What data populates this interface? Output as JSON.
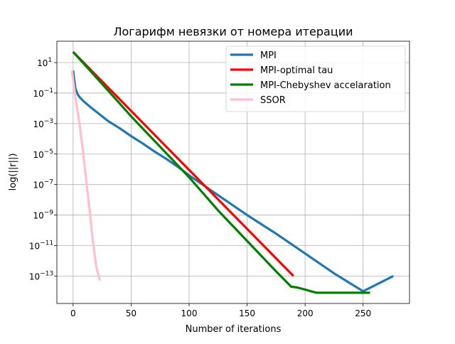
{
  "chart_data": {
    "type": "line",
    "title": "Логарифм невязки от номера итерации",
    "xlabel": "Number of iterations",
    "ylabel": "log(||r||)",
    "y_scale": "log",
    "xlim": [
      -14,
      290
    ],
    "ylim_exponent": [
      -14.8,
      2.4
    ],
    "x_ticks": [
      0,
      50,
      100,
      150,
      200,
      250
    ],
    "y_tick_exponents": [
      1,
      -1,
      -3,
      -5,
      -7,
      -9,
      -11,
      -13
    ],
    "y_tick_base": "10",
    "grid": true,
    "legend_position": "top-right",
    "series": [
      {
        "name": "MPI",
        "color": "#1f77b4",
        "x": [
          0,
          2,
          4,
          6,
          8,
          10,
          15,
          20,
          25,
          30,
          40,
          50,
          60,
          70,
          80,
          90,
          100,
          125,
          150,
          175,
          200,
          225,
          250,
          276
        ],
        "y": [
          3.0,
          0.2,
          0.08,
          0.05,
          0.035,
          0.025,
          0.012,
          0.006,
          0.003,
          0.0015,
          0.0005,
          0.00015,
          5e-05,
          1.5e-05,
          5e-06,
          1.5e-06,
          4e-07,
          2e-08,
          1e-09,
          6e-11,
          3e-12,
          1.5e-13,
          1e-14,
          1e-13
        ],
        "y_scale_note": ""
      },
      {
        "name": "MPI-optimal tau",
        "color": "#ff0000",
        "x": [
          0,
          190
        ],
        "y": [
          50,
          1e-13
        ]
      },
      {
        "name": "MPI-Chebyshev accelaration",
        "color": "#008000",
        "x": [
          0,
          25,
          50,
          75,
          100,
          125,
          150,
          175,
          188,
          193,
          200,
          205,
          210,
          220,
          230,
          240,
          256
        ],
        "y": [
          50,
          0.4,
          0.003,
          3e-05,
          3e-07,
          2e-09,
          2e-11,
          2e-13,
          2e-14,
          1.8e-14,
          1.3e-14,
          1e-14,
          8e-15,
          8e-15,
          8e-15,
          8e-15,
          8e-15
        ]
      },
      {
        "name": "SSOR",
        "color": "#ffc0cb",
        "x": [
          -1,
          2,
          5,
          8,
          11,
          14,
          17,
          20,
          23
        ],
        "y": [
          3.0,
          0.05,
          0.002,
          3e-05,
          3e-07,
          3e-09,
          2e-11,
          4e-13,
          5e-14
        ]
      }
    ]
  }
}
